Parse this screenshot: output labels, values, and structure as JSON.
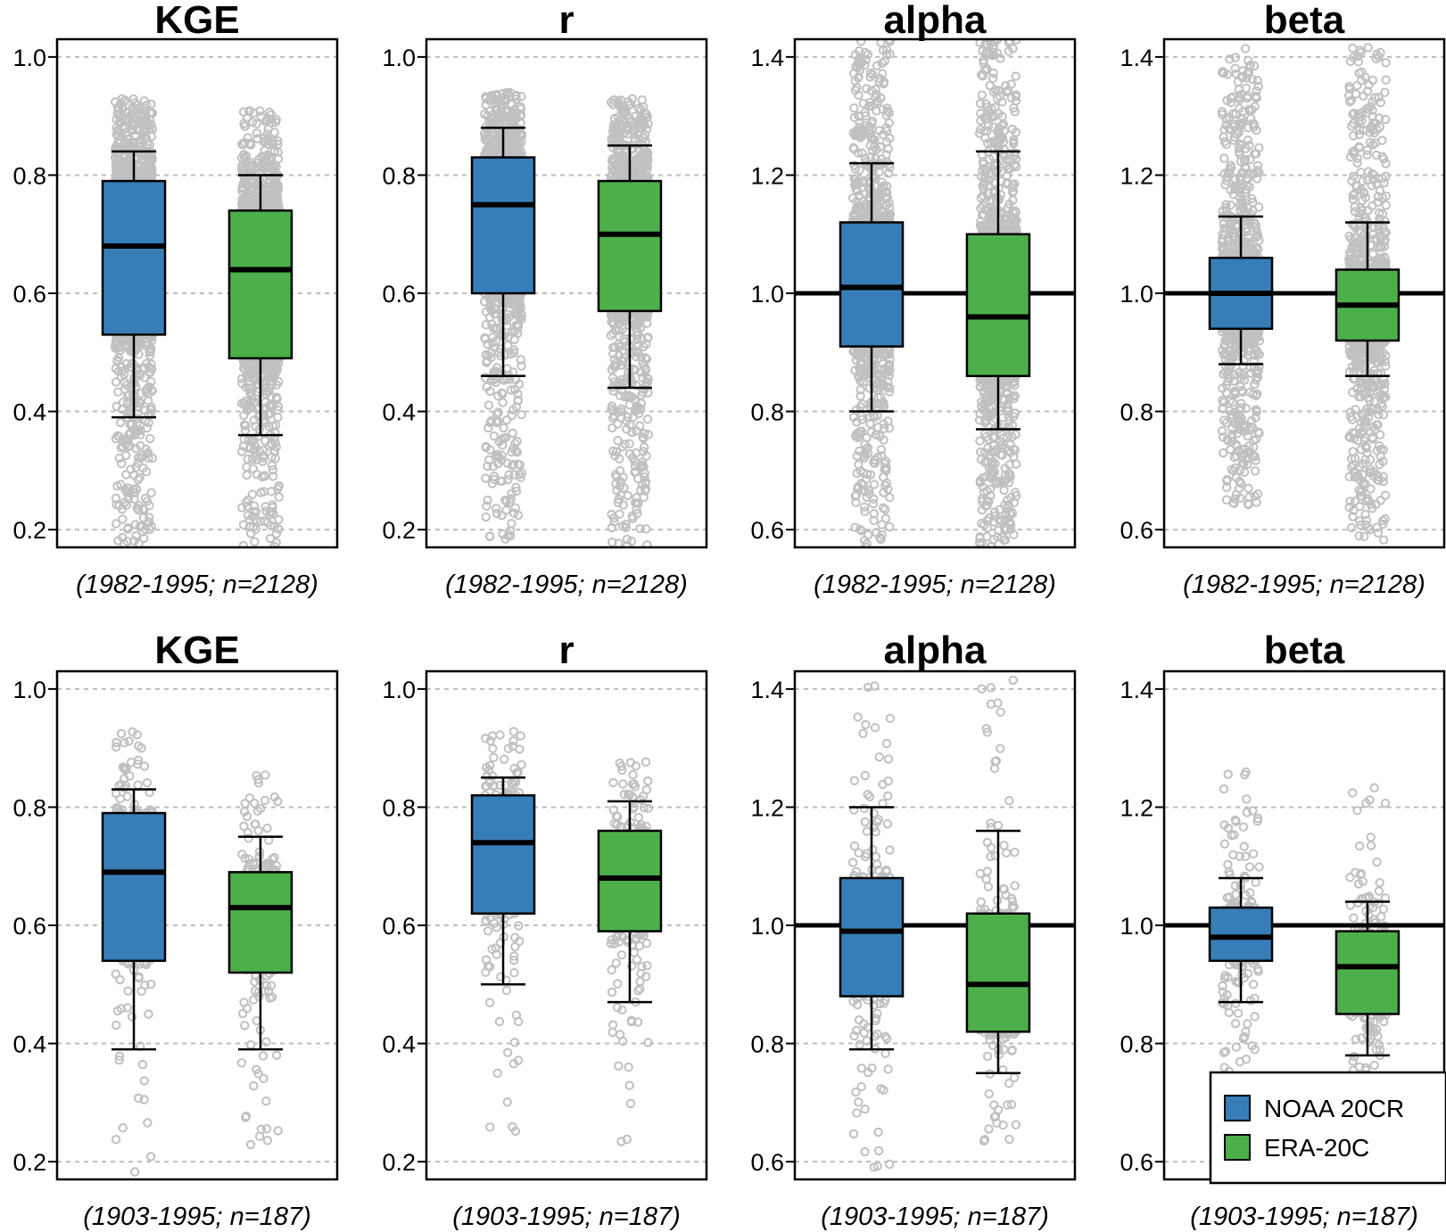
{
  "chart_data": [
    {
      "type": "box",
      "row": 1,
      "title": "KGE",
      "subtitle": "(1982-1995; n=2128)",
      "ylim": [
        0.17,
        1.03
      ],
      "yticks": [
        "0.2",
        "0.4",
        "0.6",
        "0.8",
        "1.0"
      ],
      "ref_line": null,
      "series": [
        {
          "name": "NOAA 20CR",
          "whisker_low": 0.39,
          "q1": 0.53,
          "median": 0.68,
          "q3": 0.79,
          "whisker_high": 0.84,
          "points_min": 0.17,
          "points_max": 0.93
        },
        {
          "name": "ERA-20C",
          "whisker_low": 0.36,
          "q1": 0.49,
          "median": 0.64,
          "q3": 0.74,
          "whisker_high": 0.8,
          "points_min": 0.17,
          "points_max": 0.91
        }
      ]
    },
    {
      "type": "box",
      "row": 1,
      "title": "r",
      "subtitle": "(1982-1995; n=2128)",
      "ylim": [
        0.17,
        1.03
      ],
      "yticks": [
        "0.2",
        "0.4",
        "0.6",
        "0.8",
        "1.0"
      ],
      "ref_line": null,
      "series": [
        {
          "name": "NOAA 20CR",
          "whisker_low": 0.46,
          "q1": 0.6,
          "median": 0.75,
          "q3": 0.83,
          "whisker_high": 0.88,
          "points_min": 0.18,
          "points_max": 0.94
        },
        {
          "name": "ERA-20C",
          "whisker_low": 0.44,
          "q1": 0.57,
          "median": 0.7,
          "q3": 0.79,
          "whisker_high": 0.85,
          "points_min": 0.17,
          "points_max": 0.93
        }
      ]
    },
    {
      "type": "box",
      "row": 1,
      "title": "alpha",
      "subtitle": "(1982-1995; n=2128)",
      "ylim": [
        0.57,
        1.43
      ],
      "yticks": [
        "0.6",
        "0.8",
        "1.0",
        "1.2",
        "1.4"
      ],
      "ref_line": 1.0,
      "series": [
        {
          "name": "NOAA 20CR",
          "whisker_low": 0.8,
          "q1": 0.91,
          "median": 1.01,
          "q3": 1.12,
          "whisker_high": 1.22,
          "points_min": 0.57,
          "points_max": 1.43
        },
        {
          "name": "ERA-20C",
          "whisker_low": 0.77,
          "q1": 0.86,
          "median": 0.96,
          "q3": 1.1,
          "whisker_high": 1.24,
          "points_min": 0.57,
          "points_max": 1.43
        }
      ]
    },
    {
      "type": "box",
      "row": 1,
      "title": "beta",
      "subtitle": "(1982-1995; n=2128)",
      "ylim": [
        0.57,
        1.43
      ],
      "yticks": [
        "0.6",
        "0.8",
        "1.0",
        "1.2",
        "1.4"
      ],
      "ref_line": 1.0,
      "series": [
        {
          "name": "NOAA 20CR",
          "whisker_low": 0.88,
          "q1": 0.94,
          "median": 1.0,
          "q3": 1.06,
          "whisker_high": 1.13,
          "points_min": 0.64,
          "points_max": 1.42
        },
        {
          "name": "ERA-20C",
          "whisker_low": 0.86,
          "q1": 0.92,
          "median": 0.98,
          "q3": 1.04,
          "whisker_high": 1.12,
          "points_min": 0.58,
          "points_max": 1.42
        }
      ]
    },
    {
      "type": "box",
      "row": 2,
      "title": "KGE",
      "subtitle": "(1903-1995; n=187)",
      "ylim": [
        0.17,
        1.03
      ],
      "yticks": [
        "0.2",
        "0.4",
        "0.6",
        "0.8",
        "1.0"
      ],
      "ref_line": null,
      "series": [
        {
          "name": "NOAA 20CR",
          "whisker_low": 0.39,
          "q1": 0.54,
          "median": 0.69,
          "q3": 0.79,
          "whisker_high": 0.83,
          "points_min": 0.17,
          "points_max": 0.93
        },
        {
          "name": "ERA-20C",
          "whisker_low": 0.39,
          "q1": 0.52,
          "median": 0.63,
          "q3": 0.69,
          "whisker_high": 0.75,
          "points_min": 0.2,
          "points_max": 0.86
        }
      ]
    },
    {
      "type": "box",
      "row": 2,
      "title": "r",
      "subtitle": "(1903-1995; n=187)",
      "ylim": [
        0.17,
        1.03
      ],
      "yticks": [
        "0.2",
        "0.4",
        "0.6",
        "0.8",
        "1.0"
      ],
      "ref_line": null,
      "series": [
        {
          "name": "NOAA 20CR",
          "whisker_low": 0.5,
          "q1": 0.62,
          "median": 0.74,
          "q3": 0.82,
          "whisker_high": 0.85,
          "points_min": 0.21,
          "points_max": 0.93
        },
        {
          "name": "ERA-20C",
          "whisker_low": 0.47,
          "q1": 0.59,
          "median": 0.68,
          "q3": 0.76,
          "whisker_high": 0.81,
          "points_min": 0.22,
          "points_max": 0.88
        }
      ]
    },
    {
      "type": "box",
      "row": 2,
      "title": "alpha",
      "subtitle": "(1903-1995; n=187)",
      "ylim": [
        0.57,
        1.43
      ],
      "yticks": [
        "0.6",
        "0.8",
        "1.0",
        "1.2",
        "1.4"
      ],
      "ref_line": 1.0,
      "series": [
        {
          "name": "NOAA 20CR",
          "whisker_low": 0.79,
          "q1": 0.88,
          "median": 0.99,
          "q3": 1.08,
          "whisker_high": 1.2,
          "points_min": 0.58,
          "points_max": 1.42
        },
        {
          "name": "ERA-20C",
          "whisker_low": 0.75,
          "q1": 0.82,
          "median": 0.9,
          "q3": 1.02,
          "whisker_high": 1.16,
          "points_min": 0.63,
          "points_max": 1.42
        }
      ]
    },
    {
      "type": "box",
      "row": 2,
      "title": "beta",
      "subtitle": "(1903-1995; n=187)",
      "ylim": [
        0.57,
        1.43
      ],
      "yticks": [
        "0.6",
        "0.8",
        "1.0",
        "1.2",
        "1.4"
      ],
      "ref_line": 1.0,
      "series": [
        {
          "name": "NOAA 20CR",
          "whisker_low": 0.87,
          "q1": 0.94,
          "median": 0.98,
          "q3": 1.03,
          "whisker_high": 1.08,
          "points_min": 0.74,
          "points_max": 1.27
        },
        {
          "name": "ERA-20C",
          "whisker_low": 0.78,
          "q1": 0.85,
          "median": 0.93,
          "q3": 0.99,
          "whisker_high": 1.04,
          "points_min": 0.74,
          "points_max": 1.26
        }
      ]
    }
  ],
  "legend": {
    "items": [
      {
        "label": "NOAA 20CR",
        "color": "#377eb8"
      },
      {
        "label": "ERA-20C",
        "color": "#4daf4a"
      }
    ]
  },
  "colors": {
    "noaa": "#377eb8",
    "era": "#4daf4a",
    "points": "#c0c0c0",
    "grid": "#bdbdbd"
  }
}
